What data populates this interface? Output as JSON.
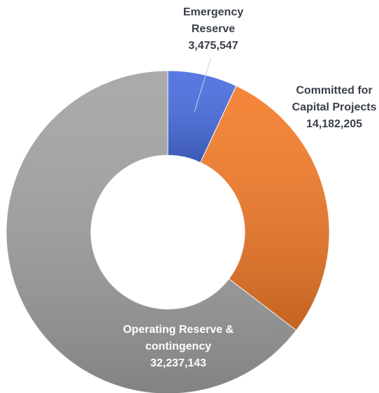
{
  "chart_data": {
    "type": "donut",
    "categories": [
      "Emergency Reserve",
      "Committed for Capital Projects",
      "Operating Reserve & contingency"
    ],
    "values": [
      3475547,
      14182205,
      32237143
    ],
    "value_labels": [
      "3,475,547",
      "14,182,205",
      "32,237,143"
    ],
    "colors": [
      "#4a6ee0",
      "#f47c2a",
      "#a3a3a3"
    ]
  }
}
